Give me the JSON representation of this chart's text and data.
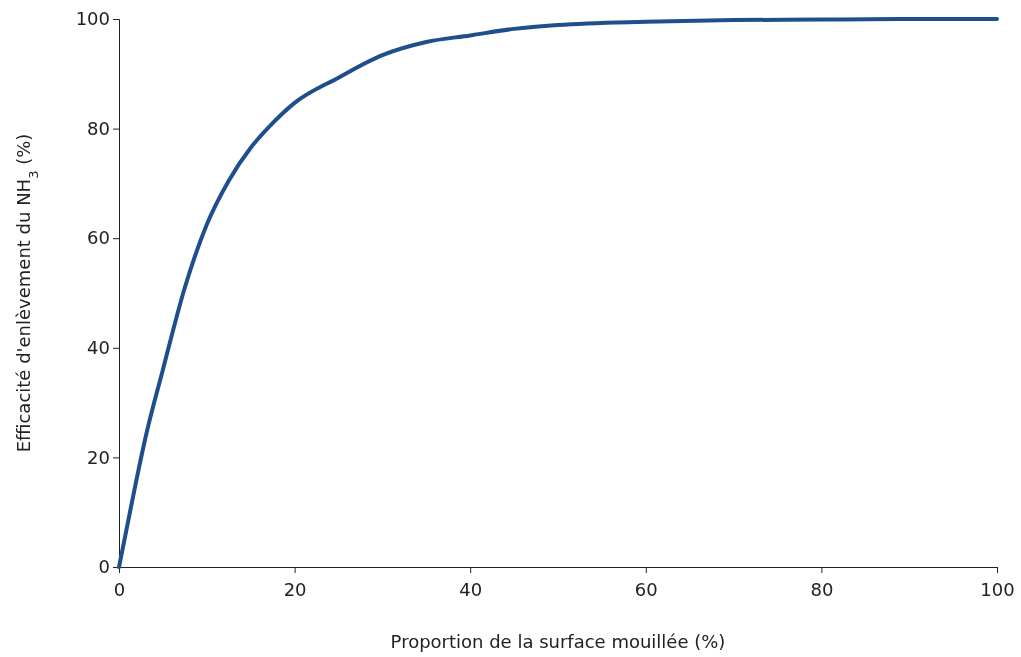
{
  "chart_data": {
    "type": "line",
    "xlabel": "Proportion de la surface mouillée (%)",
    "ylabel": "Efficacité d'enlèvement du NH$_{3}$ (%)",
    "x": [
      0,
      1,
      2,
      3,
      5,
      7.5,
      10,
      12.5,
      15,
      17.5,
      20,
      25,
      30,
      35,
      40,
      45,
      50,
      60,
      70,
      80,
      90,
      100
    ],
    "series": [
      {
        "color": "#1f4e8c",
        "values": [
          0,
          8,
          16,
          23.5,
          36,
          51,
          62.5,
          70.5,
          76.5,
          81,
          84.7,
          89.3,
          93.4,
          95.8,
          97,
          98.2,
          98.9,
          99.5,
          99.8,
          99.9,
          100,
          100
        ]
      }
    ],
    "xlim": [
      0,
      100
    ],
    "ylim": [
      0,
      100
    ],
    "xticks": [
      0,
      20,
      40,
      60,
      80,
      100
    ],
    "yticks": [
      0,
      20,
      40,
      60,
      80,
      100
    ],
    "grid": false,
    "marker": "none",
    "line_style": "solid"
  }
}
